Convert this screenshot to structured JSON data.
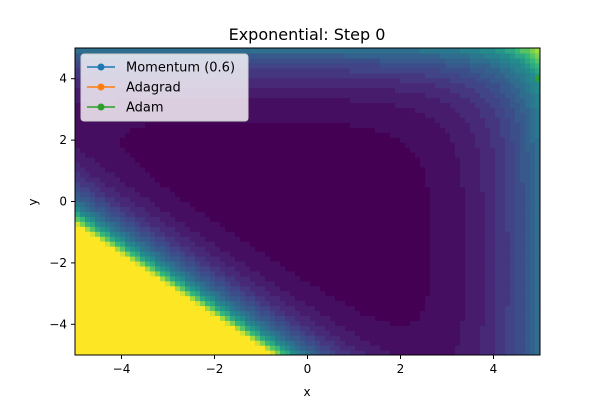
{
  "chart_data": {
    "type": "contour",
    "title": "Exponential: Step 0",
    "xlabel": "x",
    "ylabel": "y",
    "xlim": [
      -5,
      5
    ],
    "ylim": [
      -5,
      5
    ],
    "x_ticks": [
      -4,
      -2,
      0,
      2,
      4
    ],
    "y_ticks": [
      -4,
      -2,
      0,
      2,
      4
    ],
    "x_tick_labels": [
      "−4",
      "−2",
      "0",
      "2",
      "4"
    ],
    "y_tick_labels": [
      "−4",
      "−2",
      "0",
      "2",
      "4"
    ],
    "colormap": "viridis",
    "legend_position": "upper-left",
    "grid": false,
    "series": [
      {
        "name": "Momentum (0.6)",
        "color": "#1f77b4",
        "marker": "circle",
        "points": [
          {
            "x": 5,
            "y": 4
          }
        ]
      },
      {
        "name": "Adagrad",
        "color": "#ff7f0e",
        "marker": "circle",
        "points": [
          {
            "x": 5,
            "y": 4
          }
        ]
      },
      {
        "name": "Adam",
        "color": "#2ca02c",
        "marker": "circle",
        "points": [
          {
            "x": 5,
            "y": 4
          }
        ]
      }
    ]
  }
}
